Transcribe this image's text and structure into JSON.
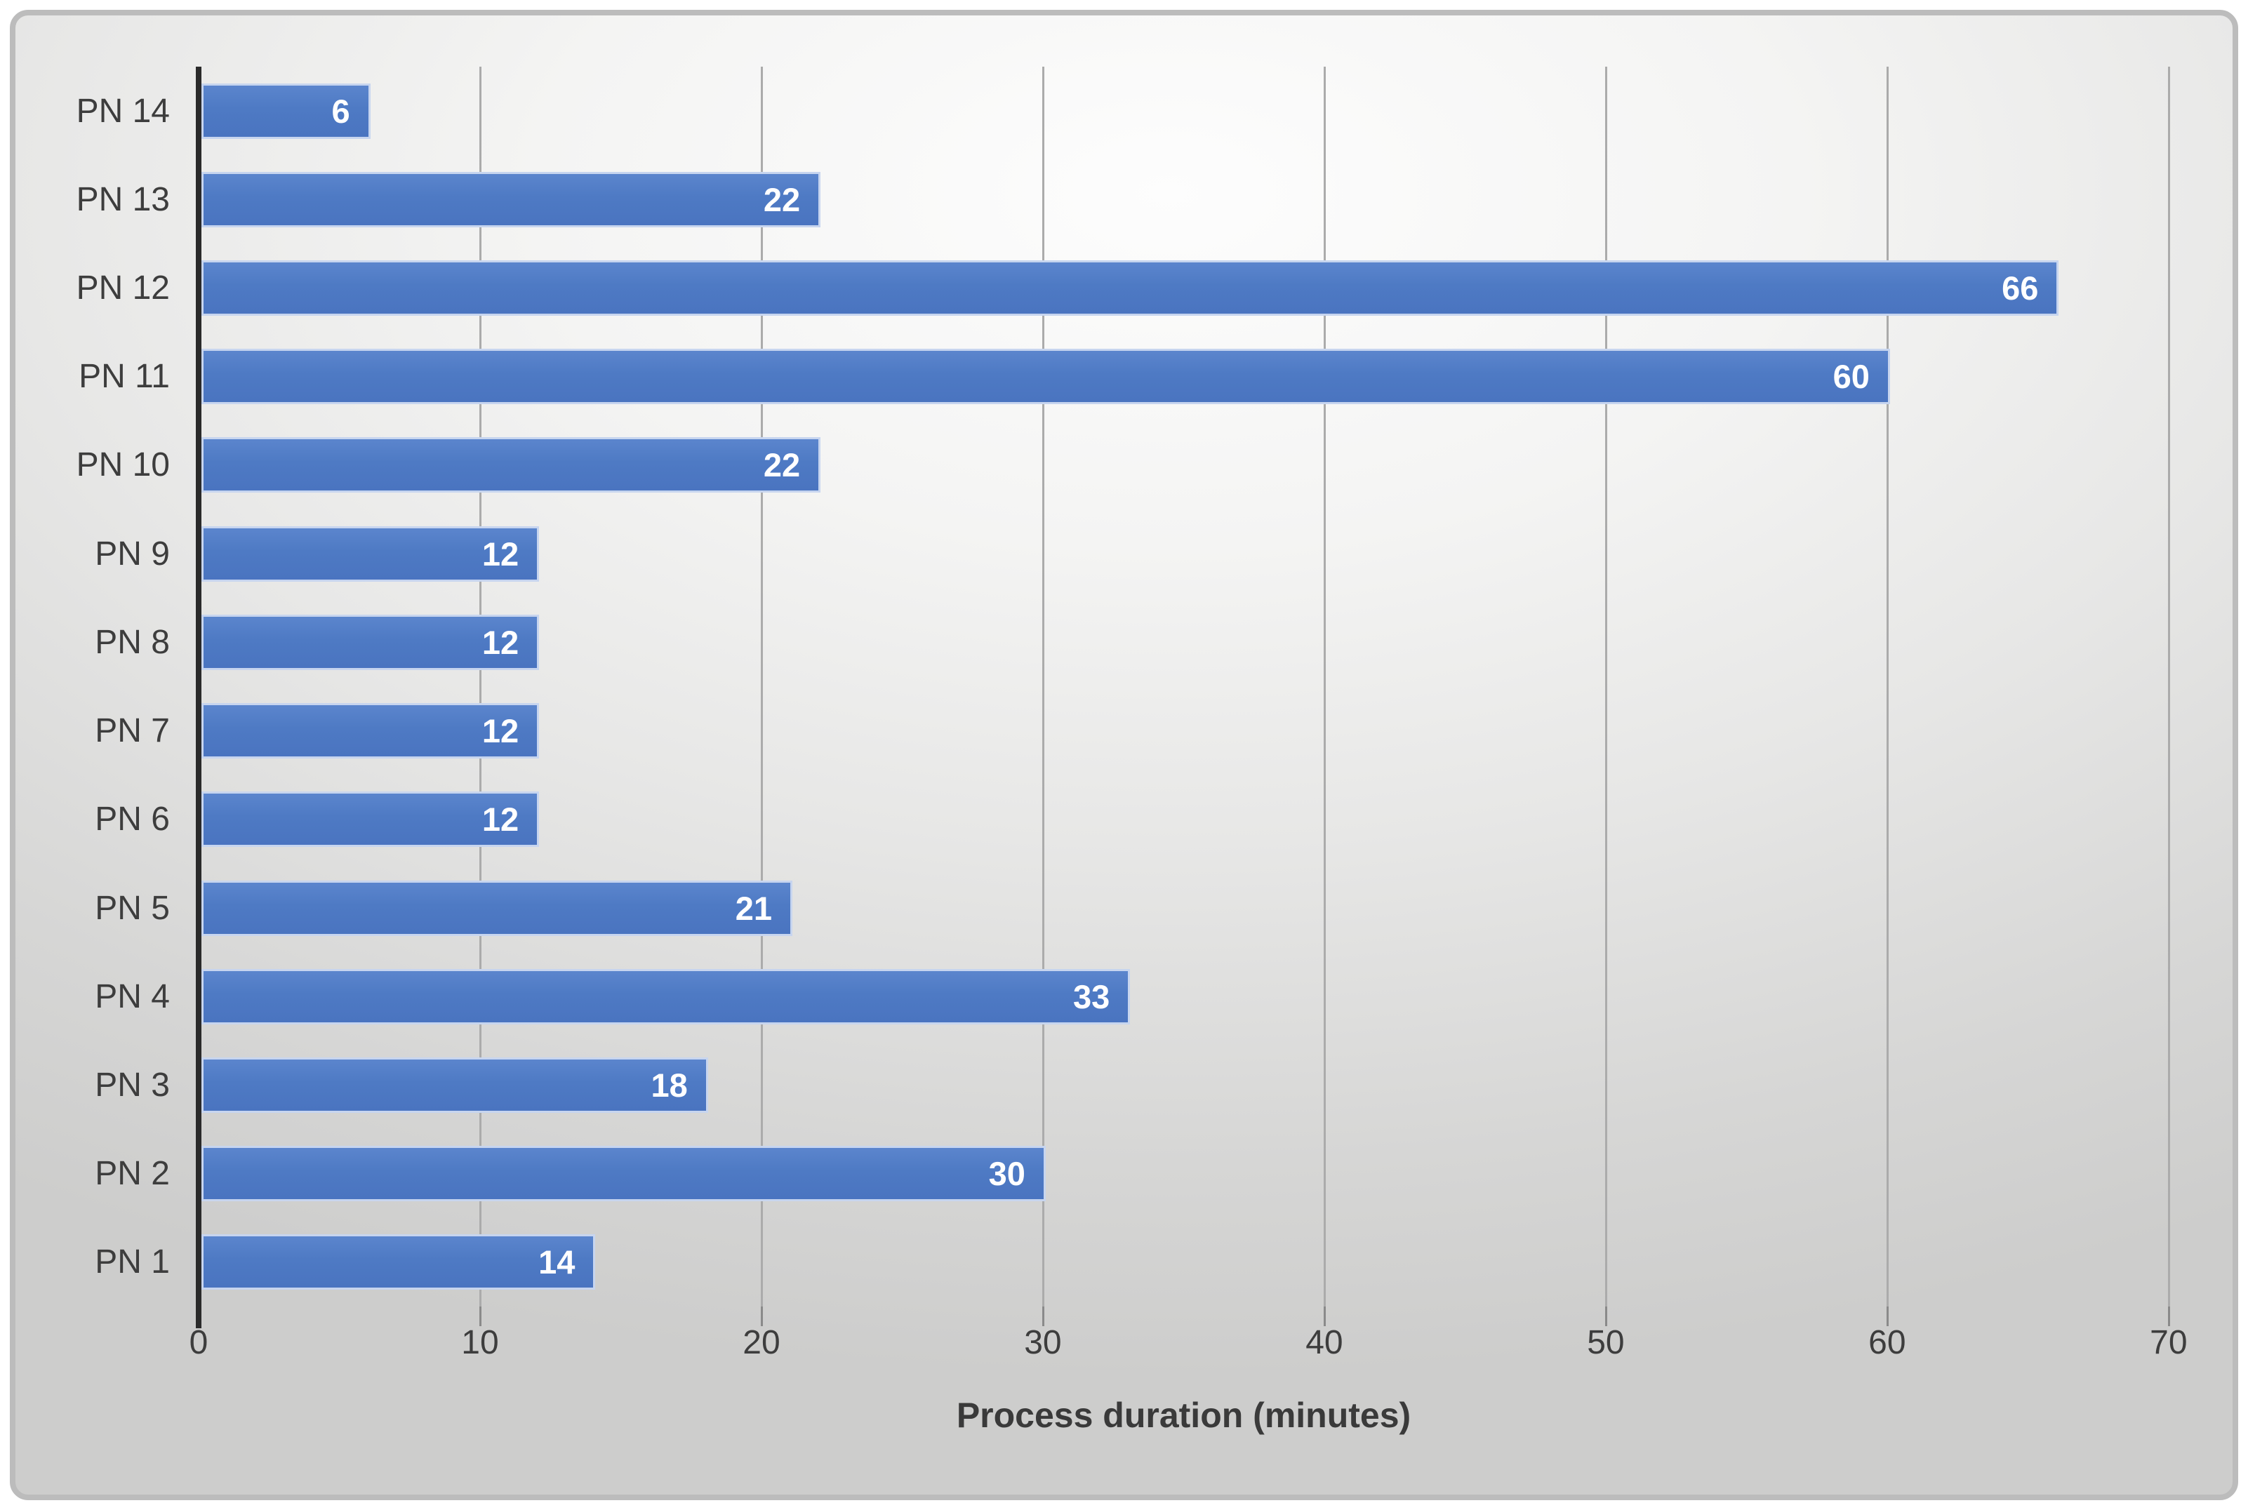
{
  "chart_data": {
    "type": "bar",
    "orientation": "horizontal",
    "title": "",
    "xlabel": "Process duration (minutes)",
    "ylabel": "",
    "categories": [
      "PN 14",
      "PN 13",
      "PN 12",
      "PN 11",
      "PN 10",
      "PN 9",
      "PN 8",
      "PN 7",
      "PN 6",
      "PN 5",
      "PN 4",
      "PN 3",
      "PN 2",
      "PN 1"
    ],
    "values": [
      6,
      22,
      66,
      60,
      22,
      12,
      12,
      12,
      12,
      21,
      33,
      18,
      30,
      14
    ],
    "xlim": [
      0,
      71.5
    ],
    "xticks": [
      0,
      10,
      20,
      30,
      40,
      50,
      60,
      70
    ],
    "grid": "vertical-gridlines-on",
    "legend": "none",
    "data_labels": "inside-end-white-bold"
  },
  "colors": {
    "bar_fill": "#4e7ac4",
    "bar_border": "#c7d5ef",
    "gridline": "#ababab",
    "y_axis_line": "#2a2a2a",
    "tick_mark": "#8a8a8a",
    "text": "#3d3d3d",
    "data_label_text": "#ffffff",
    "panel_border": "#bcbcbc",
    "panel_background_top": "#fdfdfd",
    "panel_background_bottom": "#cdcdcc"
  }
}
